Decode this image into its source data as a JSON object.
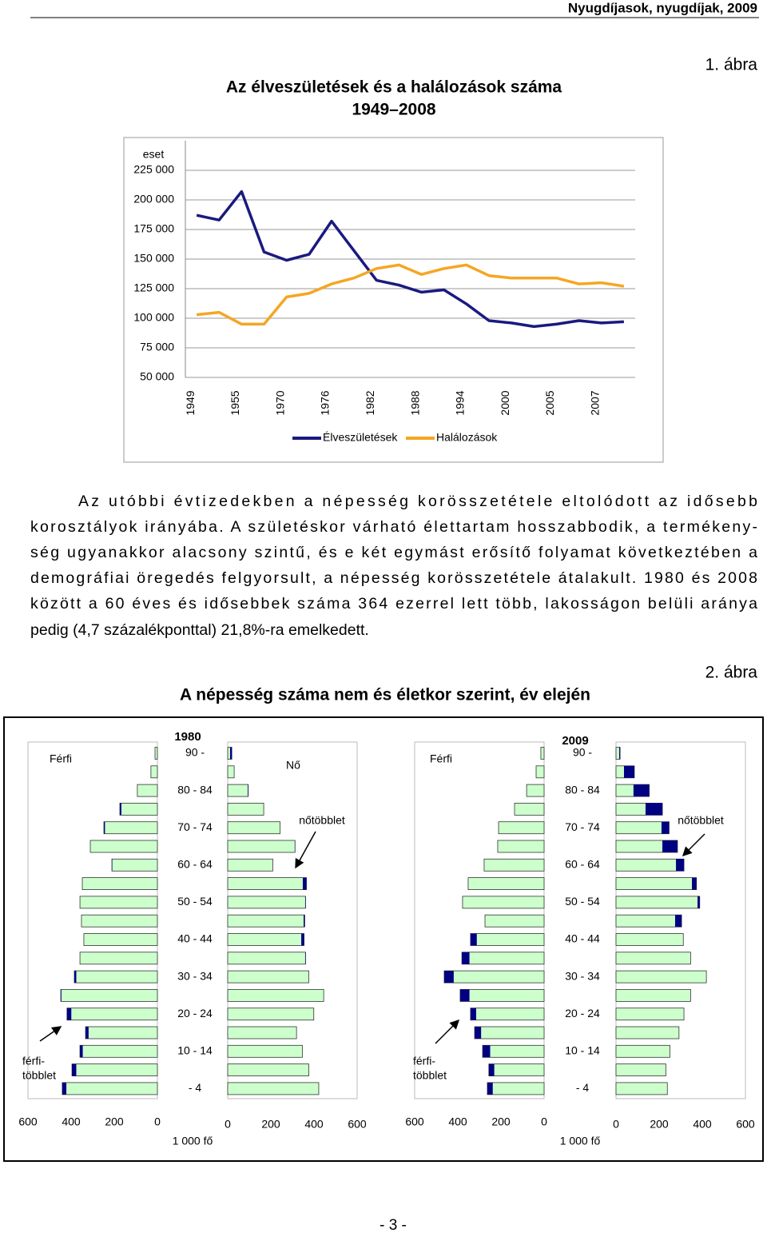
{
  "header": "Nyugdíjasok, nyugdíjak, 2009",
  "figure1_label": "1. ábra",
  "paragraph": [
    "Az utóbbi évtizedekben a népesség korösszetétele eltolódott az idősebb",
    "korosztályok irányába. A születéskor várható élettartam hosszabbodik, a termékeny-",
    "ség ugyanakkor alacsony szintű, és e két egymást erősítő folyamat következtében a",
    "demográfiai öregedés felgyorsult, a népesség korösszetétele átalakult. 1980 és 2008",
    "között a 60 éves és idősebbek száma 364 ezerrel lett több, lakosságon belüli aránya",
    "pedig (4,7 százalékponttal) 21,8%-ra emelkedett."
  ],
  "figure2_label": "2. ábra",
  "figure2_title": "A népesség száma nem és életkor szerint, év elején",
  "page_number": "- 3 -",
  "chart_data": [
    {
      "type": "line",
      "title": [
        "Az élveszületések és a halálozások száma",
        "1949–2008"
      ],
      "y_unit": "eset",
      "categories": [
        "1949",
        null,
        "1955",
        null,
        "1970",
        null,
        "1976",
        null,
        "1982",
        null,
        "1988",
        null,
        "1994",
        null,
        "2000",
        null,
        "2005",
        null,
        "2007",
        null
      ],
      "series": [
        {
          "name": "Élveszületések",
          "color": "#1a1a80",
          "values": [
            187000,
            183000,
            207000,
            156000,
            149000,
            154000,
            182000,
            157000,
            132000,
            128000,
            122000,
            124000,
            112000,
            98000,
            96000,
            93000,
            95000,
            98000,
            96000,
            97000
          ]
        },
        {
          "name": "Halálozások",
          "color": "#f5a623",
          "values": [
            103000,
            105000,
            95000,
            95000,
            118000,
            121000,
            129000,
            134000,
            142000,
            145000,
            137000,
            142000,
            145000,
            136000,
            134000,
            134000,
            134000,
            129000,
            130000,
            127000
          ]
        }
      ],
      "ylim": [
        50000,
        250000
      ],
      "yticks": [
        {
          "value": 50000,
          "label": "50 000"
        },
        {
          "value": 75000,
          "label": "75 000"
        },
        {
          "value": 100000,
          "label": "100 000"
        },
        {
          "value": 125000,
          "label": "125 000"
        },
        {
          "value": 150000,
          "label": "150 000"
        },
        {
          "value": 175000,
          "label": "175 000"
        },
        {
          "value": 200000,
          "label": "200 000"
        },
        {
          "value": 225000,
          "label": "225 000"
        }
      ],
      "grid": true
    },
    {
      "type": "pyramid",
      "title": "1980",
      "categories": [
        "90 -",
        null,
        "80 - 84",
        null,
        "70 - 74",
        null,
        "60 - 64",
        null,
        "50 - 54",
        null,
        "40 - 44",
        null,
        "30 - 34",
        null,
        "20 - 24",
        null,
        "10 - 14",
        null,
        "- 4"
      ],
      "series": [
        {
          "name": "Férfi",
          "color": "#ccffcc",
          "values": [
            11,
            30,
            93,
            174,
            248,
            311,
            211,
            348,
            359,
            352,
            341,
            359,
            385,
            448,
            419,
            333,
            359,
            396,
            441
          ]
        },
        {
          "name": "Nő",
          "color": "#ccffcc",
          "values": [
            19,
            30,
            95,
            167,
            243,
            312,
            209,
            365,
            361,
            357,
            354,
            361,
            376,
            445,
            399,
            319,
            346,
            376,
            422
          ]
        }
      ],
      "excess_color": "#000080",
      "xlim": [
        0,
        600
      ],
      "xticks": [
        0,
        200,
        400,
        600
      ],
      "x_label": "1 000 fő",
      "female_excess_label": "nőtöbblet",
      "male_excess_label": [
        "férfi-",
        "többlet"
      ]
    },
    {
      "type": "pyramid",
      "title": "2009",
      "categories": [
        "90 -",
        null,
        "80 - 84",
        null,
        "70 - 74",
        null,
        "60 - 64",
        null,
        "50 - 54",
        null,
        "40 - 44",
        null,
        "30 - 34",
        null,
        "20 - 24",
        null,
        "10 - 14",
        null,
        "- 4"
      ],
      "series": [
        {
          "name": "Férfi",
          "color": "#ccffcc",
          "values": [
            15,
            37,
            81,
            137,
            211,
            215,
            278,
            352,
            378,
            274,
            341,
            381,
            463,
            389,
            341,
            322,
            285,
            256,
            263
          ]
        },
        {
          "color": "#ccffcc",
          "values": [
            19,
            85,
            154,
            215,
            246,
            285,
            315,
            373,
            388,
            304,
            312,
            346,
            419,
            346,
            315,
            292,
            250,
            231,
            238
          ]
        }
      ],
      "excess_color": "#000080",
      "xlim": [
        0,
        600
      ],
      "xticks": [
        0,
        200,
        400,
        600
      ],
      "x_label": "1 000 fő",
      "female_excess_label": "nőtöbblet",
      "male_excess_label": [
        "férfi-",
        "többlet"
      ]
    }
  ]
}
